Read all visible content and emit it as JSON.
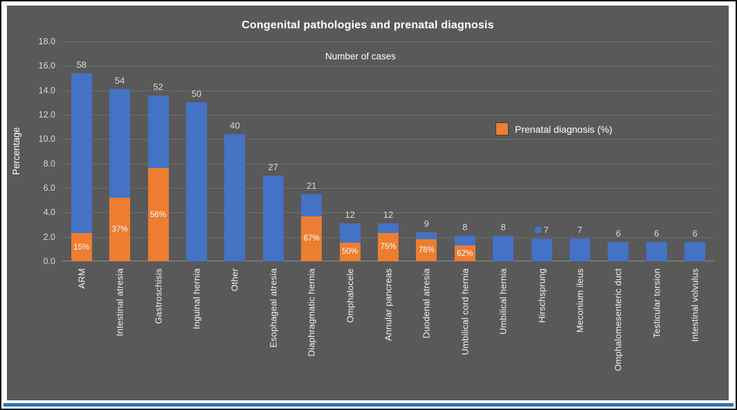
{
  "figure": {
    "background": "#ffffff",
    "border_color": "#0a0a0a",
    "bottom_band_color": "#2E75B6"
  },
  "chart_data": {
    "type": "bar",
    "title": "Congenital pathologies and prenatal diagnosis",
    "subtitle": "Number of cases",
    "ylabel": "Percentage",
    "ylim": [
      0,
      18
    ],
    "ytick_step": 2,
    "ytick_decimals": 1,
    "grid": true,
    "plot_bg": "#595959",
    "grid_color": "#6e6e6e",
    "axis_text_color": "#d9d9d9",
    "title_color": "#ffffff",
    "bar_color": "#4472C4",
    "prenatal_color": "#ED7D31",
    "categories": [
      "ARM",
      "Intestinal atresia",
      "Gastroschisis",
      "Inguinal hernia",
      "Other",
      "Esophageal atresia",
      "Diaphragmatic hernia",
      "Omphalocele",
      "Annular pancreas",
      "Duodenal atresia",
      "Umbilical cord hernia",
      "Umbilical hernia",
      "Hirschsprung",
      "Meconium ileus",
      "Omphalomesenteric duct",
      "Testicular torsion",
      "Intestinal volvulus"
    ],
    "cases": [
      58,
      54,
      52,
      50,
      40,
      27,
      21,
      12,
      12,
      9,
      8,
      8,
      7,
      7,
      6,
      6,
      6
    ],
    "bar_heights_percent": [
      15.4,
      14.1,
      13.6,
      13.0,
      10.4,
      7.0,
      5.5,
      3.1,
      3.1,
      2.35,
      2.1,
      2.1,
      1.85,
      1.85,
      1.6,
      1.6,
      1.6
    ],
    "prenatal_diagnosis_pct": [
      15,
      37,
      56,
      null,
      null,
      null,
      67,
      50,
      75,
      78,
      62,
      null,
      null,
      null,
      null,
      null,
      null
    ],
    "legend": {
      "label": "Prenatal diagnosis (%)",
      "swatch_color": "#ED7D31"
    },
    "legend_position": "middle-right",
    "stray_marker": {
      "category_index": 12,
      "color": "#4472C4"
    }
  }
}
